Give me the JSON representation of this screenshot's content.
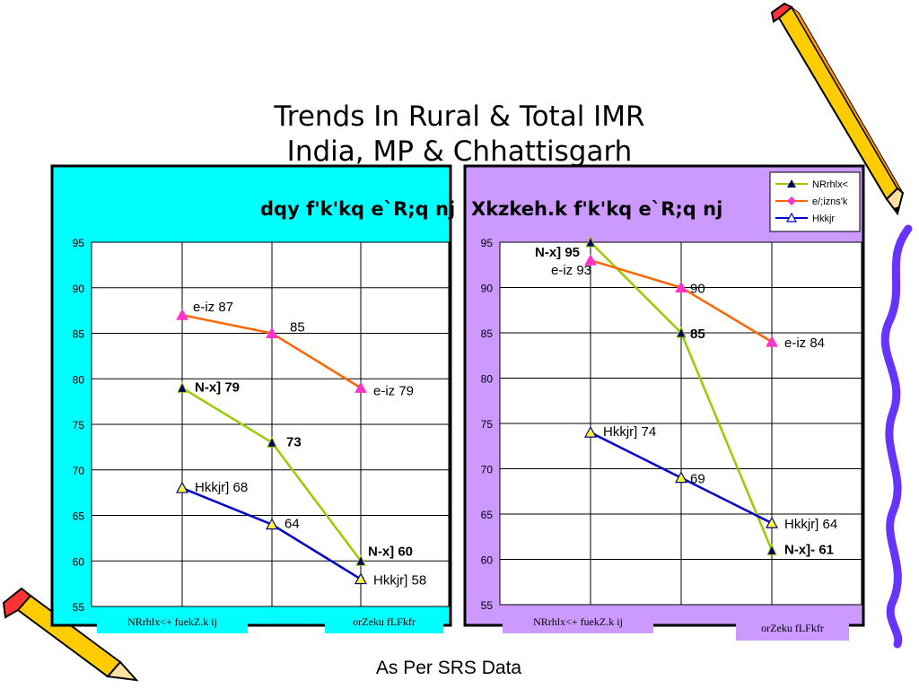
{
  "page": {
    "title_line1": "Trends In Rural & Total IMR",
    "title_line2": "India, MP & Chhattisgarh",
    "footer": "As Per SRS Data",
    "bg_left": "#00ffff",
    "bg_right": "#cc99ff"
  },
  "legend": [
    {
      "label": "NRrhlx<",
      "color": "#99cc00",
      "marker": "triangle-dark"
    },
    {
      "label": "e/;izns'k",
      "color": "#ff6600",
      "marker": "diamond-magenta"
    },
    {
      "label": "Hkkjr",
      "color": "#0000cc",
      "marker": "triangle-yellow"
    }
  ],
  "chart_data": [
    {
      "type": "line",
      "title": "dqy f'k'kq e`R;q nj",
      "ylim": [
        55,
        95
      ],
      "yticks": [
        "95",
        "90",
        "85",
        "80",
        "75",
        "70",
        "65",
        "60",
        "55"
      ],
      "x": [
        "1",
        "2",
        "3"
      ],
      "category_labels": [
        "NRrhlx<+ fuekZ.k ij",
        "orZeku fLFkfr"
      ],
      "series": [
        {
          "name": "e/;izns'k",
          "color": "#ff6600",
          "values": [
            87,
            85,
            79
          ],
          "labels": [
            "e-iz 87",
            "85",
            "e-iz 79"
          ]
        },
        {
          "name": "NRrhlx<",
          "color": "#99cc00",
          "values": [
            79,
            73,
            60
          ],
          "labels": [
            "N-x] 79",
            "73",
            "N-x] 60"
          ]
        },
        {
          "name": "Hkkjr",
          "color": "#0000cc",
          "values": [
            68,
            64,
            58
          ],
          "labels": [
            "Hkkjr] 68",
            "64",
            "Hkkjr] 58"
          ]
        }
      ]
    },
    {
      "type": "line",
      "title": "Xkzkeh.k f'k'kq e`R;q nj",
      "ylim": [
        55,
        95
      ],
      "yticks": [
        "95",
        "90",
        "85",
        "80",
        "75",
        "70",
        "65",
        "60",
        "55"
      ],
      "x": [
        "1",
        "2",
        "3"
      ],
      "category_labels": [
        "NRrhlx<+ fuekZ.k ij",
        "orZeku fLFkfr"
      ],
      "series": [
        {
          "name": "NRrhlx<",
          "color": "#99cc00",
          "values": [
            95,
            85,
            61
          ],
          "labels": [
            "N-x] 95",
            "85",
            "N-x]- 61"
          ]
        },
        {
          "name": "e/;izns'k",
          "color": "#ff6600",
          "values": [
            93,
            90,
            84
          ],
          "labels": [
            "e-iz 93",
            "90",
            "e-iz 84"
          ]
        },
        {
          "name": "Hkkjr",
          "color": "#0000cc",
          "values": [
            74,
            69,
            64
          ],
          "labels": [
            "Hkkjr] 74",
            "69",
            "Hkkjr] 64"
          ]
        }
      ]
    }
  ]
}
